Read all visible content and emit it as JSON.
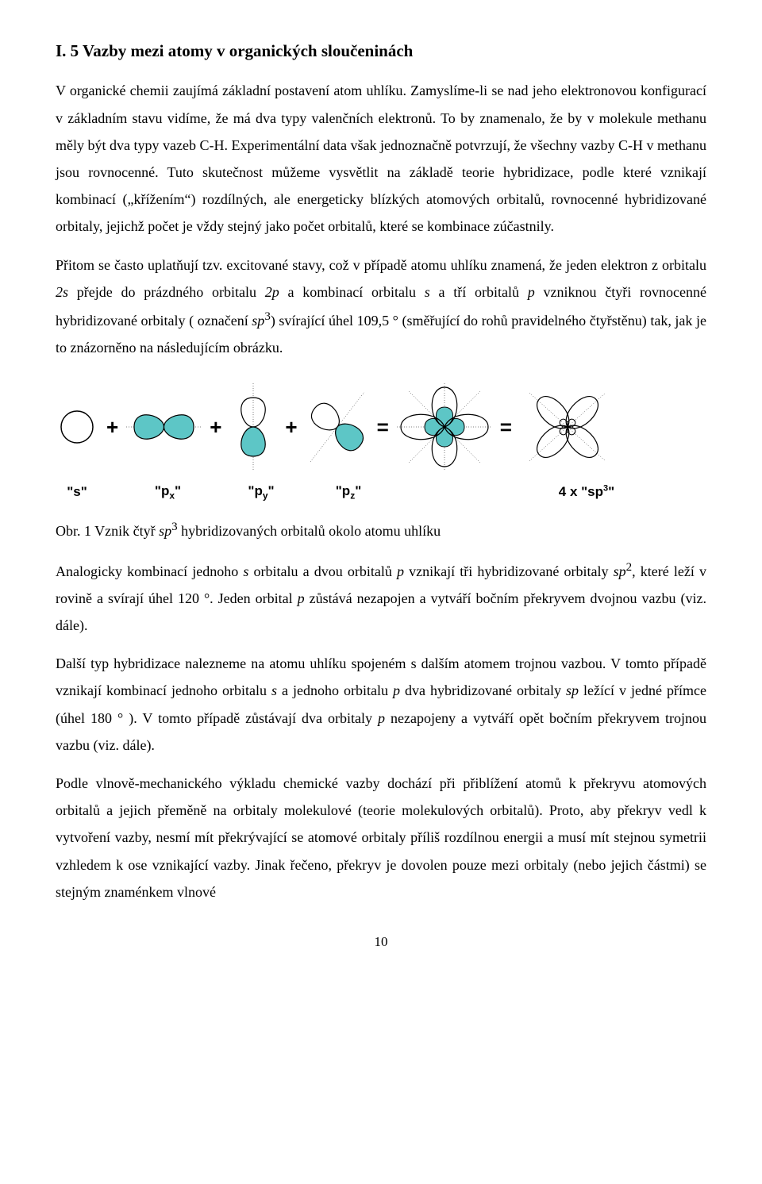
{
  "heading": "I. 5 Vazby mezi atomy v organických sloučeninách",
  "para1": "V organické chemii zaujímá základní postavení atom uhlíku. Zamyslíme-li se nad jeho elektronovou konfigurací v základním stavu vidíme, že má dva typy valenčních elektronů. To by znamenalo, že by v molekule methanu měly být dva typy vazeb C-H. Experimentální data však jednoznačně potvrzují, že všechny vazby C-H v methanu jsou rovnocenné. Tuto skutečnost můžeme vysvětlit na základě teorie hybridizace, podle které vznikají kombinací („křížením“) rozdílných, ale energeticky blízkých atomových orbitalů, rovnocenné hybridizované orbitaly, jejichž počet je vždy stejný jako počet orbitalů, které se kombinace zúčastnily.",
  "para2_html": "Přitom se často uplatňují tzv. excitované stavy, což v případě atomu uhlíku znamená, že jeden elektron z orbitalu <i>2s</i> přejde do prázdného orbitalu <i>2p</i> a kombinací orbitalu <i>s</i> a tří orbitalů <i>p</i> vzniknou čtyři rovnocenné hybridizované orbitaly ( označení <i>sp</i><sup>3</sup>) svírající úhel 109,5 ° (směřující do rohů pravidelného čtyřstěnu) tak, jak je to znázorněno na následujícím obrázku.",
  "caption_html": "Obr. 1 Vznik čtyř <i>sp</i><sup>3</sup> hybridizovaných orbitalů okolo atomu uhlíku",
  "para3_html": "Analogicky kombinací jednoho <i>s</i> orbitalu a dvou orbitalů <i>p</i> vznikají tři hybridizované orbitaly <i>sp</i><sup>2</sup>, které leží v rovině a svírají úhel 120 °. Jeden orbital <i>p</i> zůstává nezapojen a vytváří bočním překryvem dvojnou vazbu (viz. dále).",
  "para4_html": "Další typ hybridizace nalezneme na atomu uhlíku spojeném s dalším atomem trojnou vazbou. V tomto případě vznikají kombinací jednoho orbitalu <i>s</i> a jednoho orbitalu <i>p</i> dva hybridizované orbitaly <i>sp</i> ležící v jedné přímce (úhel 180 ° ). V tomto případě zůstávají dva orbitaly <i>p</i> nezapojeny a vytváří opět bočním překryvem trojnou vazbu (viz. dále).",
  "para5": "Podle vlnově-mechanického výkladu chemické vazby dochází při přiblížení atomů k překryvu atomových orbitalů a jejich přeměně na orbitaly molekulové (teorie molekulových orbitalů). Proto, aby překryv vedl k vytvoření vazby, nesmí mít překrývající se atomové orbitaly příliš rozdílnou energii a musí mít stejnou symetrii vzhledem k ose vznikající vazby. Jinak řečeno, překryv je dovolen pouze mezi orbitaly (nebo jejich částmi) se stejným znaménkem vlnové",
  "labels": {
    "s": "\"s\"",
    "px_html": "\"p<sub>x</sub>\"",
    "py_html": "\"p<sub>y</sub>\"",
    "pz_html": "\"p<sub>z</sub>\"",
    "sp3_html": "4 x \"sp<sup>3</sup>\""
  },
  "pagenum": "10",
  "colors": {
    "teal": "#5dc6c6",
    "stroke": "#000000",
    "guide": "#000000"
  }
}
